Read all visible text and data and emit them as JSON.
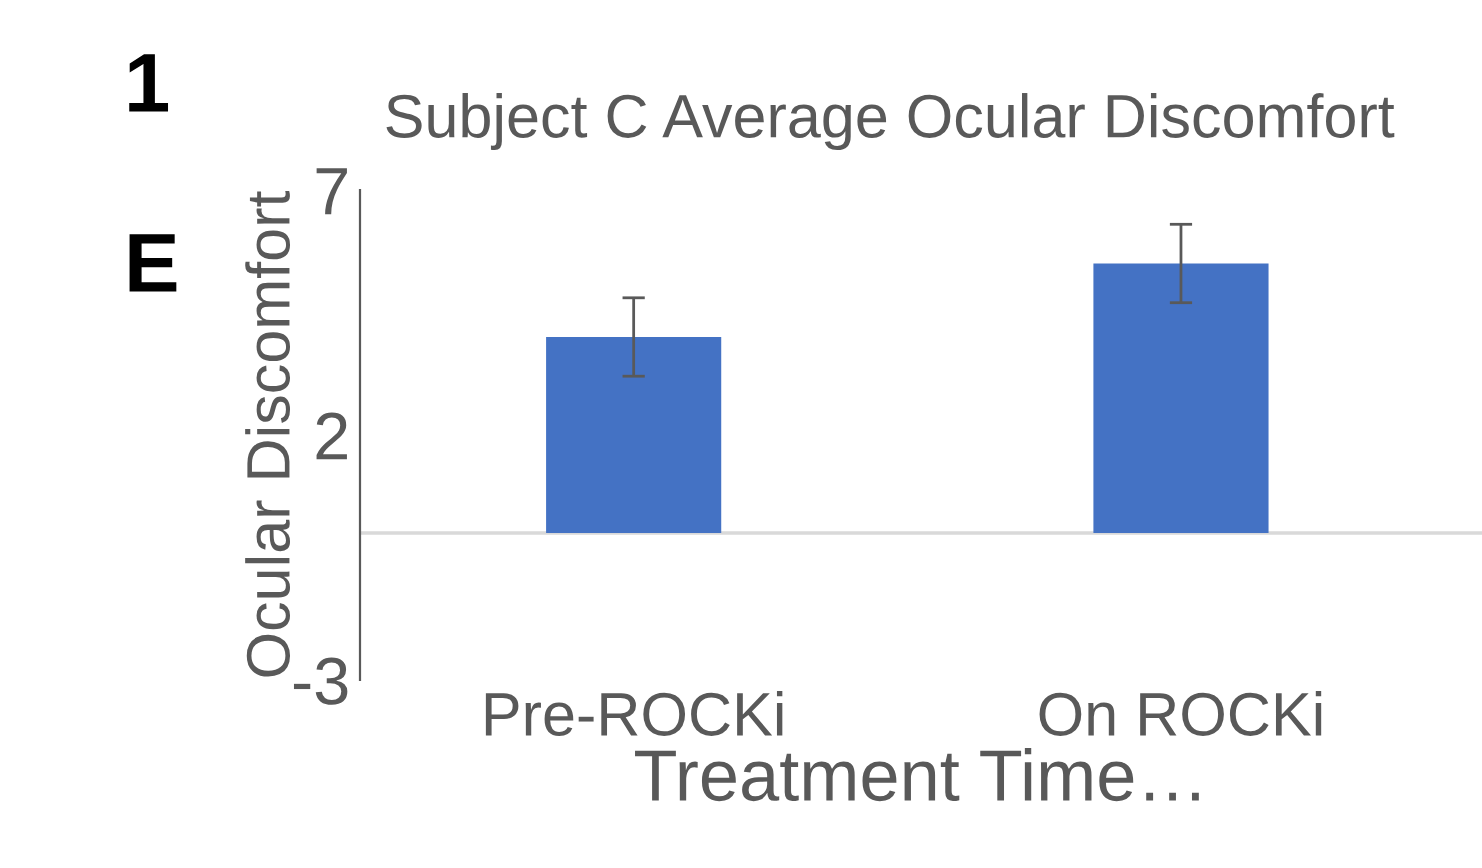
{
  "chart_data": {
    "type": "bar",
    "title": "Subject C Average Ocular Discomfort",
    "xlabel": "Treatment Time…",
    "ylabel": "Ocular Discomfort",
    "annotations": [
      "1",
      "E"
    ],
    "categories": [
      "Pre-ROCKi",
      "On ROCKi"
    ],
    "values": [
      4.0,
      5.5
    ],
    "errors": [
      0.8,
      0.8
    ],
    "color": "#4472c4",
    "ylim": [
      -3,
      7
    ],
    "yticks": [
      -3,
      2,
      7
    ],
    "grid": false,
    "legend": false
  }
}
